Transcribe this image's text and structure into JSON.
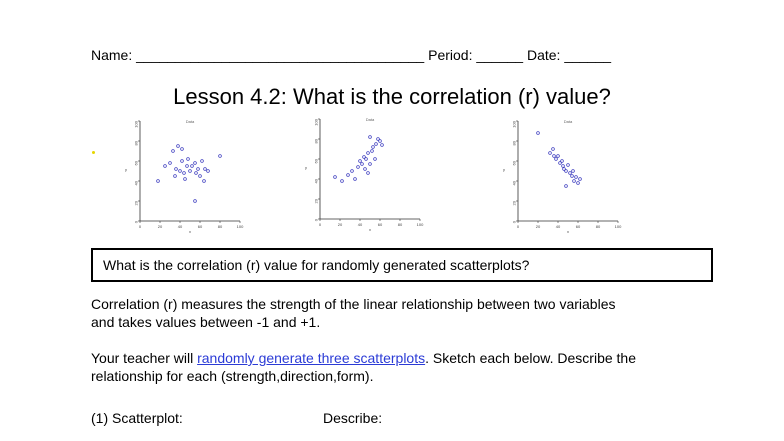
{
  "header": {
    "name_label": "Name: ",
    "name_blank": "_____________________________________",
    "period_label": " Period: ",
    "period_blank": "______",
    "date_label": " Date: ",
    "date_blank": "______"
  },
  "title": "Lesson 4.2: What is the correlation (r) value?",
  "colors": {
    "points": "#3d3dbf",
    "axis": "#333333",
    "link": "#2b3bd6",
    "marker": "#e6d600"
  },
  "chart_data": [
    {
      "type": "scatter",
      "title": "Data",
      "xlim": [
        0,
        100
      ],
      "ylim": [
        0,
        100
      ],
      "xticks": [
        "0",
        "20",
        "40",
        "60",
        "80",
        "100"
      ],
      "yticks": [
        "0",
        "20",
        "40",
        "60",
        "80",
        "100"
      ],
      "xlabel": "x",
      "ylabel": "y",
      "x": [
        18,
        25,
        30,
        33,
        35,
        36,
        38,
        40,
        42,
        44,
        45,
        47,
        48,
        50,
        52,
        55,
        56,
        58,
        60,
        62,
        64,
        65,
        68,
        80,
        55,
        42
      ],
      "y": [
        40,
        55,
        58,
        70,
        45,
        52,
        75,
        50,
        60,
        48,
        42,
        55,
        62,
        50,
        55,
        58,
        48,
        52,
        45,
        60,
        40,
        52,
        50,
        65,
        20,
        72
      ]
    },
    {
      "type": "scatter",
      "title": "Data",
      "xlim": [
        0,
        100
      ],
      "ylim": [
        0,
        100
      ],
      "xticks": [
        "0",
        "20",
        "40",
        "60",
        "80",
        "100"
      ],
      "yticks": [
        "0",
        "20",
        "40",
        "60",
        "80",
        "100"
      ],
      "xlabel": "x",
      "ylabel": "y",
      "x": [
        15,
        22,
        28,
        32,
        35,
        38,
        40,
        42,
        44,
        45,
        46,
        48,
        50,
        52,
        53,
        55,
        56,
        58,
        60,
        62,
        50,
        48
      ],
      "y": [
        42,
        38,
        44,
        48,
        40,
        52,
        58,
        55,
        62,
        50,
        60,
        66,
        55,
        68,
        72,
        60,
        75,
        80,
        78,
        74,
        82,
        46
      ]
    },
    {
      "type": "scatter",
      "title": "Data",
      "xlim": [
        0,
        100
      ],
      "ylim": [
        0,
        100
      ],
      "xticks": [
        "0",
        "20",
        "40",
        "60",
        "80",
        "100"
      ],
      "yticks": [
        "0",
        "20",
        "40",
        "60",
        "80",
        "100"
      ],
      "xlabel": "x",
      "ylabel": "y",
      "x": [
        20,
        32,
        35,
        38,
        40,
        42,
        44,
        45,
        46,
        48,
        50,
        52,
        54,
        55,
        56,
        58,
        60,
        62,
        48,
        36
      ],
      "y": [
        88,
        68,
        72,
        62,
        65,
        58,
        60,
        55,
        52,
        50,
        56,
        48,
        45,
        50,
        40,
        44,
        38,
        42,
        35,
        65
      ]
    }
  ],
  "question": "What is the correlation (r) value for randomly generated scatterplots?",
  "paragraph1": {
    "line1": "Correlation (r) measures the strength of the linear relationship between two variables",
    "line2": "and takes values between -1 and +1."
  },
  "paragraph2": {
    "before_link": "Your teacher will ",
    "link_text": "randomly generate three scatterplots",
    "after_link": ".  Sketch each below.  Describe the",
    "line2": "relationship for each (strength,direction,form)."
  },
  "bottom": {
    "scatterplot_label": "(1) Scatterplot:",
    "describe_label": "Describe:"
  }
}
